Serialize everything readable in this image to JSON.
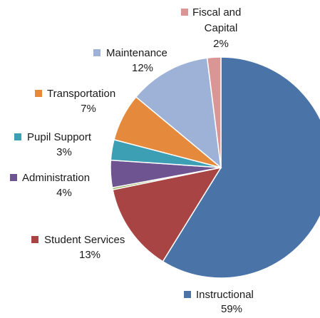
{
  "chart_data": {
    "type": "pie",
    "start_angle_deg": 0,
    "direction": "clockwise",
    "legend": "inline-labels",
    "slices": [
      {
        "label": "Instructional",
        "value": 59,
        "value_label": "59%",
        "color": "#4a73a8"
      },
      {
        "label": "Student Services",
        "value": 13,
        "value_label": "13%",
        "color": "#a84444"
      },
      {
        "label": "",
        "value": 0.3,
        "value_label": "",
        "color": "#8aa84a"
      },
      {
        "label": "Administration",
        "value": 4,
        "value_label": "4%",
        "color": "#6e5490"
      },
      {
        "label": "Pupil Support",
        "value": 3,
        "value_label": "3%",
        "color": "#3c9fb4"
      },
      {
        "label": "Transportation",
        "value": 7,
        "value_label": "7%",
        "color": "#e58a3c"
      },
      {
        "label": "Maintenance",
        "value": 12,
        "value_label": "12%",
        "color": "#9db2d6"
      },
      {
        "label": "Fiscal and Capital",
        "value": 2,
        "value_label": "2%",
        "color": "#d99694"
      }
    ]
  }
}
